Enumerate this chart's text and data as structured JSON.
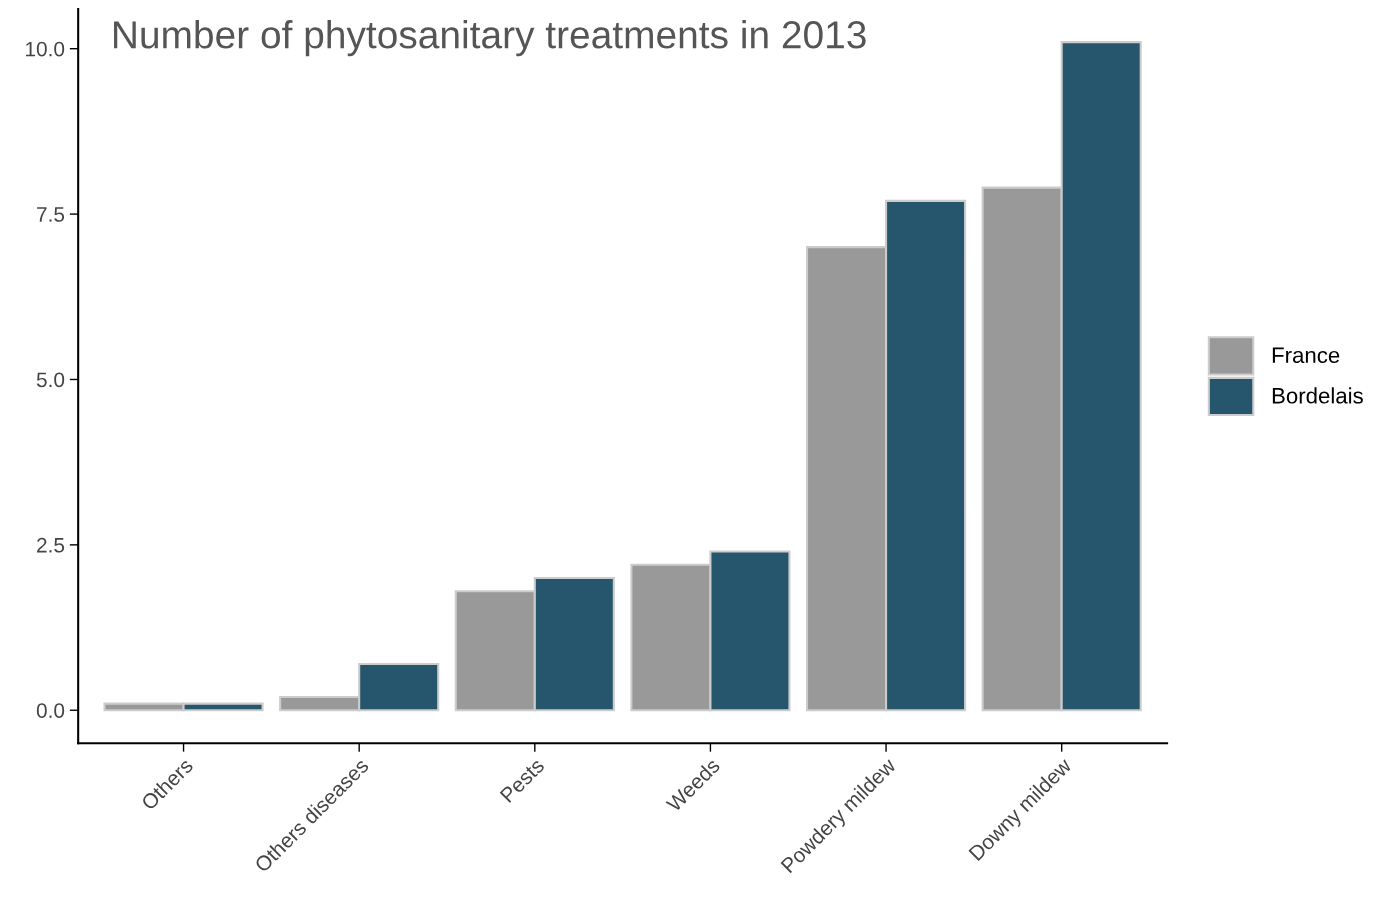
{
  "chart_data": {
    "type": "bar",
    "title": "Number of phytosanitary treatments in 2013",
    "categories": [
      "Others",
      "Others diseases",
      "Pests",
      "Weeds",
      "Powdery mildew",
      "Downy mildew"
    ],
    "series": [
      {
        "name": "France",
        "color": "#999999",
        "values": [
          0.1,
          0.2,
          1.8,
          2.2,
          7.0,
          7.9
        ]
      },
      {
        "name": "Bordelais",
        "color": "#26566e",
        "values": [
          0.1,
          0.7,
          2.0,
          2.4,
          7.7,
          10.1
        ]
      }
    ],
    "ylim": [
      -0.5,
      10.6
    ],
    "yticks": [
      {
        "value": 0,
        "label": "0.0"
      },
      {
        "value": 2.5,
        "label": "2.5"
      },
      {
        "value": 5,
        "label": "5.0"
      },
      {
        "value": 7.5,
        "label": "7.5"
      },
      {
        "value": 10,
        "label": "10.0"
      }
    ],
    "grid": false,
    "legend": "right"
  }
}
